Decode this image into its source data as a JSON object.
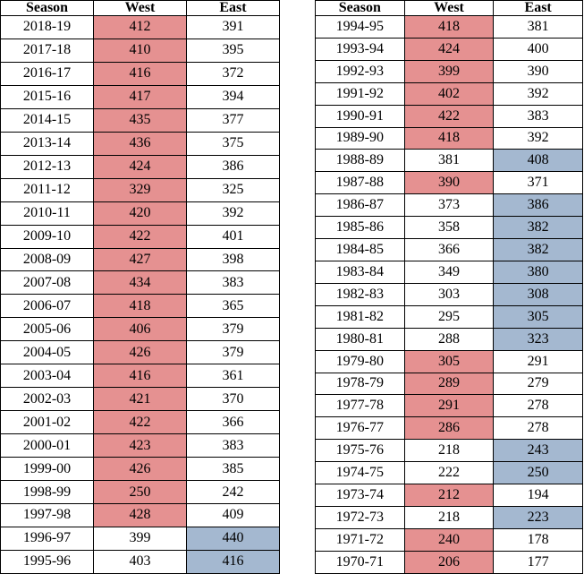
{
  "colors": {
    "west_highlight": "#E59191",
    "east_highlight": "#A4B8D0",
    "border": "#000000",
    "background": "#FFFFFF"
  },
  "chart_data": [
    {
      "type": "table",
      "columns": [
        "Season",
        "West",
        "East"
      ],
      "highlight_legend": "west cell shaded red when West value is higher; east cell shaded blue when East value is higher",
      "rows": [
        {
          "season": "2018-19",
          "west": 412,
          "east": 391,
          "highlight": "west"
        },
        {
          "season": "2017-18",
          "west": 410,
          "east": 395,
          "highlight": "west"
        },
        {
          "season": "2016-17",
          "west": 416,
          "east": 372,
          "highlight": "west"
        },
        {
          "season": "2015-16",
          "west": 417,
          "east": 394,
          "highlight": "west"
        },
        {
          "season": "2014-15",
          "west": 435,
          "east": 377,
          "highlight": "west"
        },
        {
          "season": "2013-14",
          "west": 436,
          "east": 375,
          "highlight": "west"
        },
        {
          "season": "2012-13",
          "west": 424,
          "east": 386,
          "highlight": "west"
        },
        {
          "season": "2011-12",
          "west": 329,
          "east": 325,
          "highlight": "west"
        },
        {
          "season": "2010-11",
          "west": 420,
          "east": 392,
          "highlight": "west"
        },
        {
          "season": "2009-10",
          "west": 422,
          "east": 401,
          "highlight": "west"
        },
        {
          "season": "2008-09",
          "west": 427,
          "east": 398,
          "highlight": "west"
        },
        {
          "season": "2007-08",
          "west": 434,
          "east": 383,
          "highlight": "west"
        },
        {
          "season": "2006-07",
          "west": 418,
          "east": 365,
          "highlight": "west"
        },
        {
          "season": "2005-06",
          "west": 406,
          "east": 379,
          "highlight": "west"
        },
        {
          "season": "2004-05",
          "west": 426,
          "east": 379,
          "highlight": "west"
        },
        {
          "season": "2003-04",
          "west": 416,
          "east": 361,
          "highlight": "west"
        },
        {
          "season": "2002-03",
          "west": 421,
          "east": 370,
          "highlight": "west"
        },
        {
          "season": "2001-02",
          "west": 422,
          "east": 366,
          "highlight": "west"
        },
        {
          "season": "2000-01",
          "west": 423,
          "east": 383,
          "highlight": "west"
        },
        {
          "season": "1999-00",
          "west": 426,
          "east": 385,
          "highlight": "west"
        },
        {
          "season": "1998-99",
          "west": 250,
          "east": 242,
          "highlight": "west"
        },
        {
          "season": "1997-98",
          "west": 428,
          "east": 409,
          "highlight": "west"
        },
        {
          "season": "1996-97",
          "west": 399,
          "east": 440,
          "highlight": "east"
        },
        {
          "season": "1995-96",
          "west": 403,
          "east": 416,
          "highlight": "east"
        }
      ]
    },
    {
      "type": "table",
      "columns": [
        "Season",
        "West",
        "East"
      ],
      "highlight_legend": "west cell shaded red when West value is higher; east cell shaded blue when East value is higher",
      "rows": [
        {
          "season": "1994-95",
          "west": 418,
          "east": 381,
          "highlight": "west"
        },
        {
          "season": "1993-94",
          "west": 424,
          "east": 400,
          "highlight": "west"
        },
        {
          "season": "1992-93",
          "west": 399,
          "east": 390,
          "highlight": "west"
        },
        {
          "season": "1991-92",
          "west": 402,
          "east": 392,
          "highlight": "west"
        },
        {
          "season": "1990-91",
          "west": 422,
          "east": 383,
          "highlight": "west"
        },
        {
          "season": "1989-90",
          "west": 418,
          "east": 392,
          "highlight": "west"
        },
        {
          "season": "1988-89",
          "west": 381,
          "east": 408,
          "highlight": "east"
        },
        {
          "season": "1987-88",
          "west": 390,
          "east": 371,
          "highlight": "west"
        },
        {
          "season": "1986-87",
          "west": 373,
          "east": 386,
          "highlight": "east"
        },
        {
          "season": "1985-86",
          "west": 358,
          "east": 382,
          "highlight": "east"
        },
        {
          "season": "1984-85",
          "west": 366,
          "east": 382,
          "highlight": "east"
        },
        {
          "season": "1983-84",
          "west": 349,
          "east": 380,
          "highlight": "east"
        },
        {
          "season": "1982-83",
          "west": 303,
          "east": 308,
          "highlight": "east"
        },
        {
          "season": "1981-82",
          "west": 295,
          "east": 305,
          "highlight": "east"
        },
        {
          "season": "1980-81",
          "west": 288,
          "east": 323,
          "highlight": "east"
        },
        {
          "season": "1979-80",
          "west": 305,
          "east": 291,
          "highlight": "west"
        },
        {
          "season": "1978-79",
          "west": 289,
          "east": 279,
          "highlight": "west"
        },
        {
          "season": "1977-78",
          "west": 291,
          "east": 278,
          "highlight": "west"
        },
        {
          "season": "1976-77",
          "west": 286,
          "east": 278,
          "highlight": "west"
        },
        {
          "season": "1975-76",
          "west": 218,
          "east": 243,
          "highlight": "east"
        },
        {
          "season": "1974-75",
          "west": 222,
          "east": 250,
          "highlight": "east"
        },
        {
          "season": "1973-74",
          "west": 212,
          "east": 194,
          "highlight": "west"
        },
        {
          "season": "1972-73",
          "west": 218,
          "east": 223,
          "highlight": "east"
        },
        {
          "season": "1971-72",
          "west": 240,
          "east": 178,
          "highlight": "west"
        },
        {
          "season": "1970-71",
          "west": 206,
          "east": 177,
          "highlight": "west"
        }
      ]
    }
  ]
}
